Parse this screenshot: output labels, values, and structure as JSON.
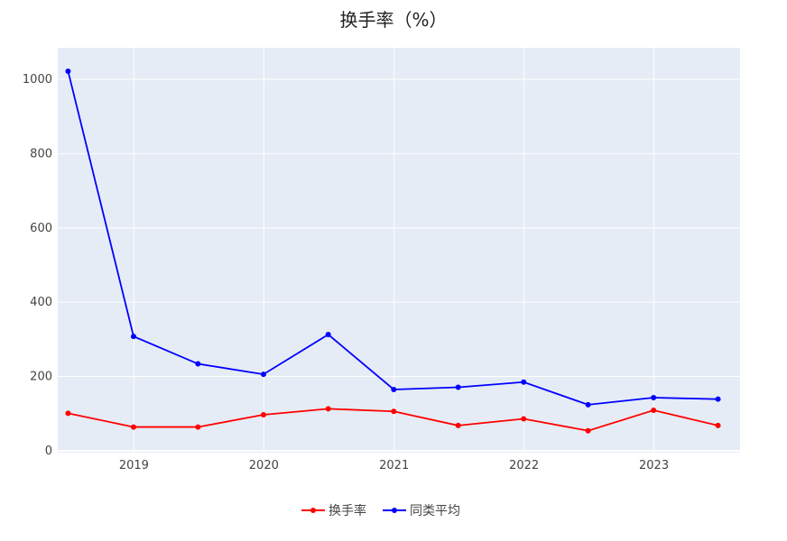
{
  "chart_data": {
    "type": "line",
    "title": "换手率（%）",
    "xlabel": "",
    "ylabel": "",
    "x": [
      "2018-06-30",
      "2018-12-31",
      "2019-06-30",
      "2019-12-31",
      "2020-06-30",
      "2020-12-31",
      "2021-06-30",
      "2021-12-31",
      "2022-06-30",
      "2022-12-31",
      "2023-06-30"
    ],
    "x_ticks": [
      "2019",
      "2020",
      "2021",
      "2022",
      "2023"
    ],
    "y_ticks": [
      0,
      200,
      400,
      600,
      800,
      1000
    ],
    "ylim": [
      -5,
      1085
    ],
    "grid": true,
    "legend_position": "bottom-center",
    "series": [
      {
        "name": "换手率",
        "color": "#ff0000",
        "values": [
          101,
          64,
          64,
          97,
          113,
          106,
          68,
          86,
          54,
          109,
          68
        ]
      },
      {
        "name": "同类平均",
        "color": "#0000ff",
        "values": [
          1022,
          308,
          234,
          206,
          313,
          165,
          171,
          185,
          124,
          143,
          139
        ]
      }
    ]
  }
}
